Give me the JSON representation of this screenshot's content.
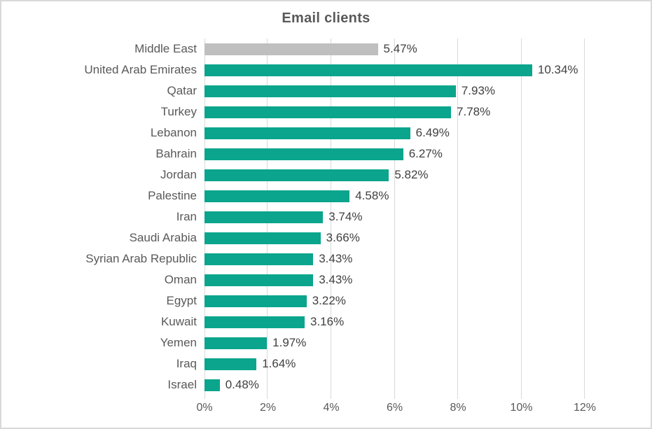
{
  "window": {
    "background": "#ffffff",
    "border_color": "#d9d9d9"
  },
  "chart_data": {
    "type": "bar",
    "orientation": "horizontal",
    "title": "Email clients",
    "categories": [
      "Middle East",
      "United Arab Emirates",
      "Qatar",
      "Turkey",
      "Lebanon",
      "Bahrain",
      "Jordan",
      "Palestine",
      "Iran",
      "Saudi Arabia",
      "Syrian Arab Republic",
      "Oman",
      "Egypt",
      "Kuwait",
      "Yemen",
      "Iraq",
      "Israel"
    ],
    "values": [
      5.47,
      10.34,
      7.93,
      7.78,
      6.49,
      6.27,
      5.82,
      4.58,
      3.74,
      3.66,
      3.43,
      3.43,
      3.22,
      3.16,
      1.97,
      1.64,
      0.48
    ],
    "value_labels": [
      "5.47%",
      "10.34%",
      "7.93%",
      "7.78%",
      "6.49%",
      "6.27%",
      "5.82%",
      "4.58%",
      "3.74%",
      "3.66%",
      "3.43%",
      "3.43%",
      "3.22%",
      "3.16%",
      "1.97%",
      "1.64%",
      "0.48%"
    ],
    "xlabel": "",
    "ylabel": "",
    "xlim": [
      0,
      12
    ],
    "x_tick_values": [
      0,
      2,
      4,
      6,
      8,
      10,
      12
    ],
    "x_tick_labels": [
      "0%",
      "2%",
      "4%",
      "6%",
      "8%",
      "10%",
      "12%"
    ],
    "grid": "vertical",
    "legend": "none",
    "highlight_index": 0,
    "colors": {
      "bar": "#0aa58c",
      "highlight_bar": "#bfbfbf",
      "gridline": "#d9d9d9",
      "title_text": "#595959",
      "category_text": "#595959",
      "value_text": "#404040",
      "tick_text": "#595959"
    }
  }
}
